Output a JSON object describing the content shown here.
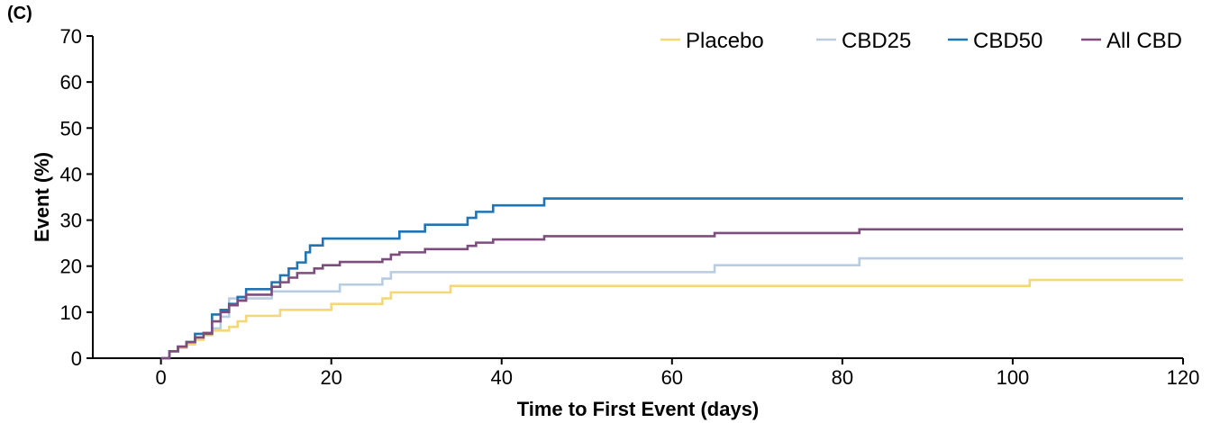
{
  "panel_label": "(C)",
  "chart_data": {
    "type": "line",
    "step": true,
    "title": "",
    "xlabel": "Time to First Event (days)",
    "ylabel": "Event (%)",
    "xlim": [
      -8,
      120
    ],
    "ylim": [
      0,
      70
    ],
    "xticks": [
      0,
      20,
      40,
      60,
      80,
      100,
      120
    ],
    "yticks": [
      0,
      10,
      20,
      30,
      40,
      50,
      60,
      70
    ],
    "grid": false,
    "legend_position": "top-right",
    "series": [
      {
        "name": "Placebo",
        "color": "#f5d77a",
        "points": [
          [
            0,
            0
          ],
          [
            1,
            1.5
          ],
          [
            2,
            2.2
          ],
          [
            3,
            3
          ],
          [
            4,
            4
          ],
          [
            5,
            5
          ],
          [
            6,
            6
          ],
          [
            8,
            6.8
          ],
          [
            9,
            8
          ],
          [
            10,
            9.2
          ],
          [
            14,
            10.5
          ],
          [
            20,
            11.8
          ],
          [
            26,
            13
          ],
          [
            27,
            14.3
          ],
          [
            34,
            15.7
          ],
          [
            102,
            15.7
          ],
          [
            102,
            17
          ],
          [
            120,
            17
          ]
        ]
      },
      {
        "name": "CBD25",
        "color": "#b8cce4",
        "points": [
          [
            0,
            0
          ],
          [
            1,
            1.5
          ],
          [
            2,
            2.5
          ],
          [
            3,
            3.5
          ],
          [
            4,
            4.5
          ],
          [
            5,
            5.5
          ],
          [
            6,
            6.5
          ],
          [
            7,
            9
          ],
          [
            8,
            13
          ],
          [
            13,
            14.5
          ],
          [
            21,
            16
          ],
          [
            26,
            17.3
          ],
          [
            27,
            18.7
          ],
          [
            65,
            18.7
          ],
          [
            65,
            20.2
          ],
          [
            82,
            20.2
          ],
          [
            82,
            21.7
          ],
          [
            120,
            21.7
          ]
        ]
      },
      {
        "name": "CBD50",
        "color": "#1f74b1",
        "points": [
          [
            0,
            0
          ],
          [
            1,
            1.5
          ],
          [
            2,
            2.5
          ],
          [
            3,
            3.5
          ],
          [
            4,
            5.3
          ],
          [
            6,
            9.5
          ],
          [
            7,
            10.5
          ],
          [
            8,
            11.8
          ],
          [
            9,
            13.3
          ],
          [
            10,
            15
          ],
          [
            13,
            16.5
          ],
          [
            14,
            18
          ],
          [
            15,
            19.5
          ],
          [
            16,
            20.8
          ],
          [
            17,
            23
          ],
          [
            17.5,
            24.5
          ],
          [
            19,
            26
          ],
          [
            28,
            27.5
          ],
          [
            31,
            29
          ],
          [
            36,
            30.5
          ],
          [
            37,
            31.8
          ],
          [
            39,
            33.2
          ],
          [
            45,
            34.7
          ],
          [
            120,
            34.7
          ]
        ]
      },
      {
        "name": "All CBD",
        "color": "#7d4e7d",
        "points": [
          [
            0,
            0
          ],
          [
            1,
            1.5
          ],
          [
            2,
            2.5
          ],
          [
            3,
            3.5
          ],
          [
            4,
            4.5
          ],
          [
            5,
            5.5
          ],
          [
            6,
            8
          ],
          [
            7,
            10
          ],
          [
            8,
            11.5
          ],
          [
            9,
            12.5
          ],
          [
            10,
            13.8
          ],
          [
            13,
            15.5
          ],
          [
            14,
            16.5
          ],
          [
            15,
            17.5
          ],
          [
            16,
            18.5
          ],
          [
            18,
            19.5
          ],
          [
            19,
            20.2
          ],
          [
            21,
            20.9
          ],
          [
            26,
            21.5
          ],
          [
            27,
            22.5
          ],
          [
            28,
            23
          ],
          [
            31,
            23.7
          ],
          [
            36,
            24.4
          ],
          [
            37,
            25.1
          ],
          [
            39,
            25.8
          ],
          [
            45,
            26.5
          ],
          [
            65,
            27.2
          ],
          [
            82,
            28
          ],
          [
            120,
            28
          ]
        ]
      }
    ]
  }
}
